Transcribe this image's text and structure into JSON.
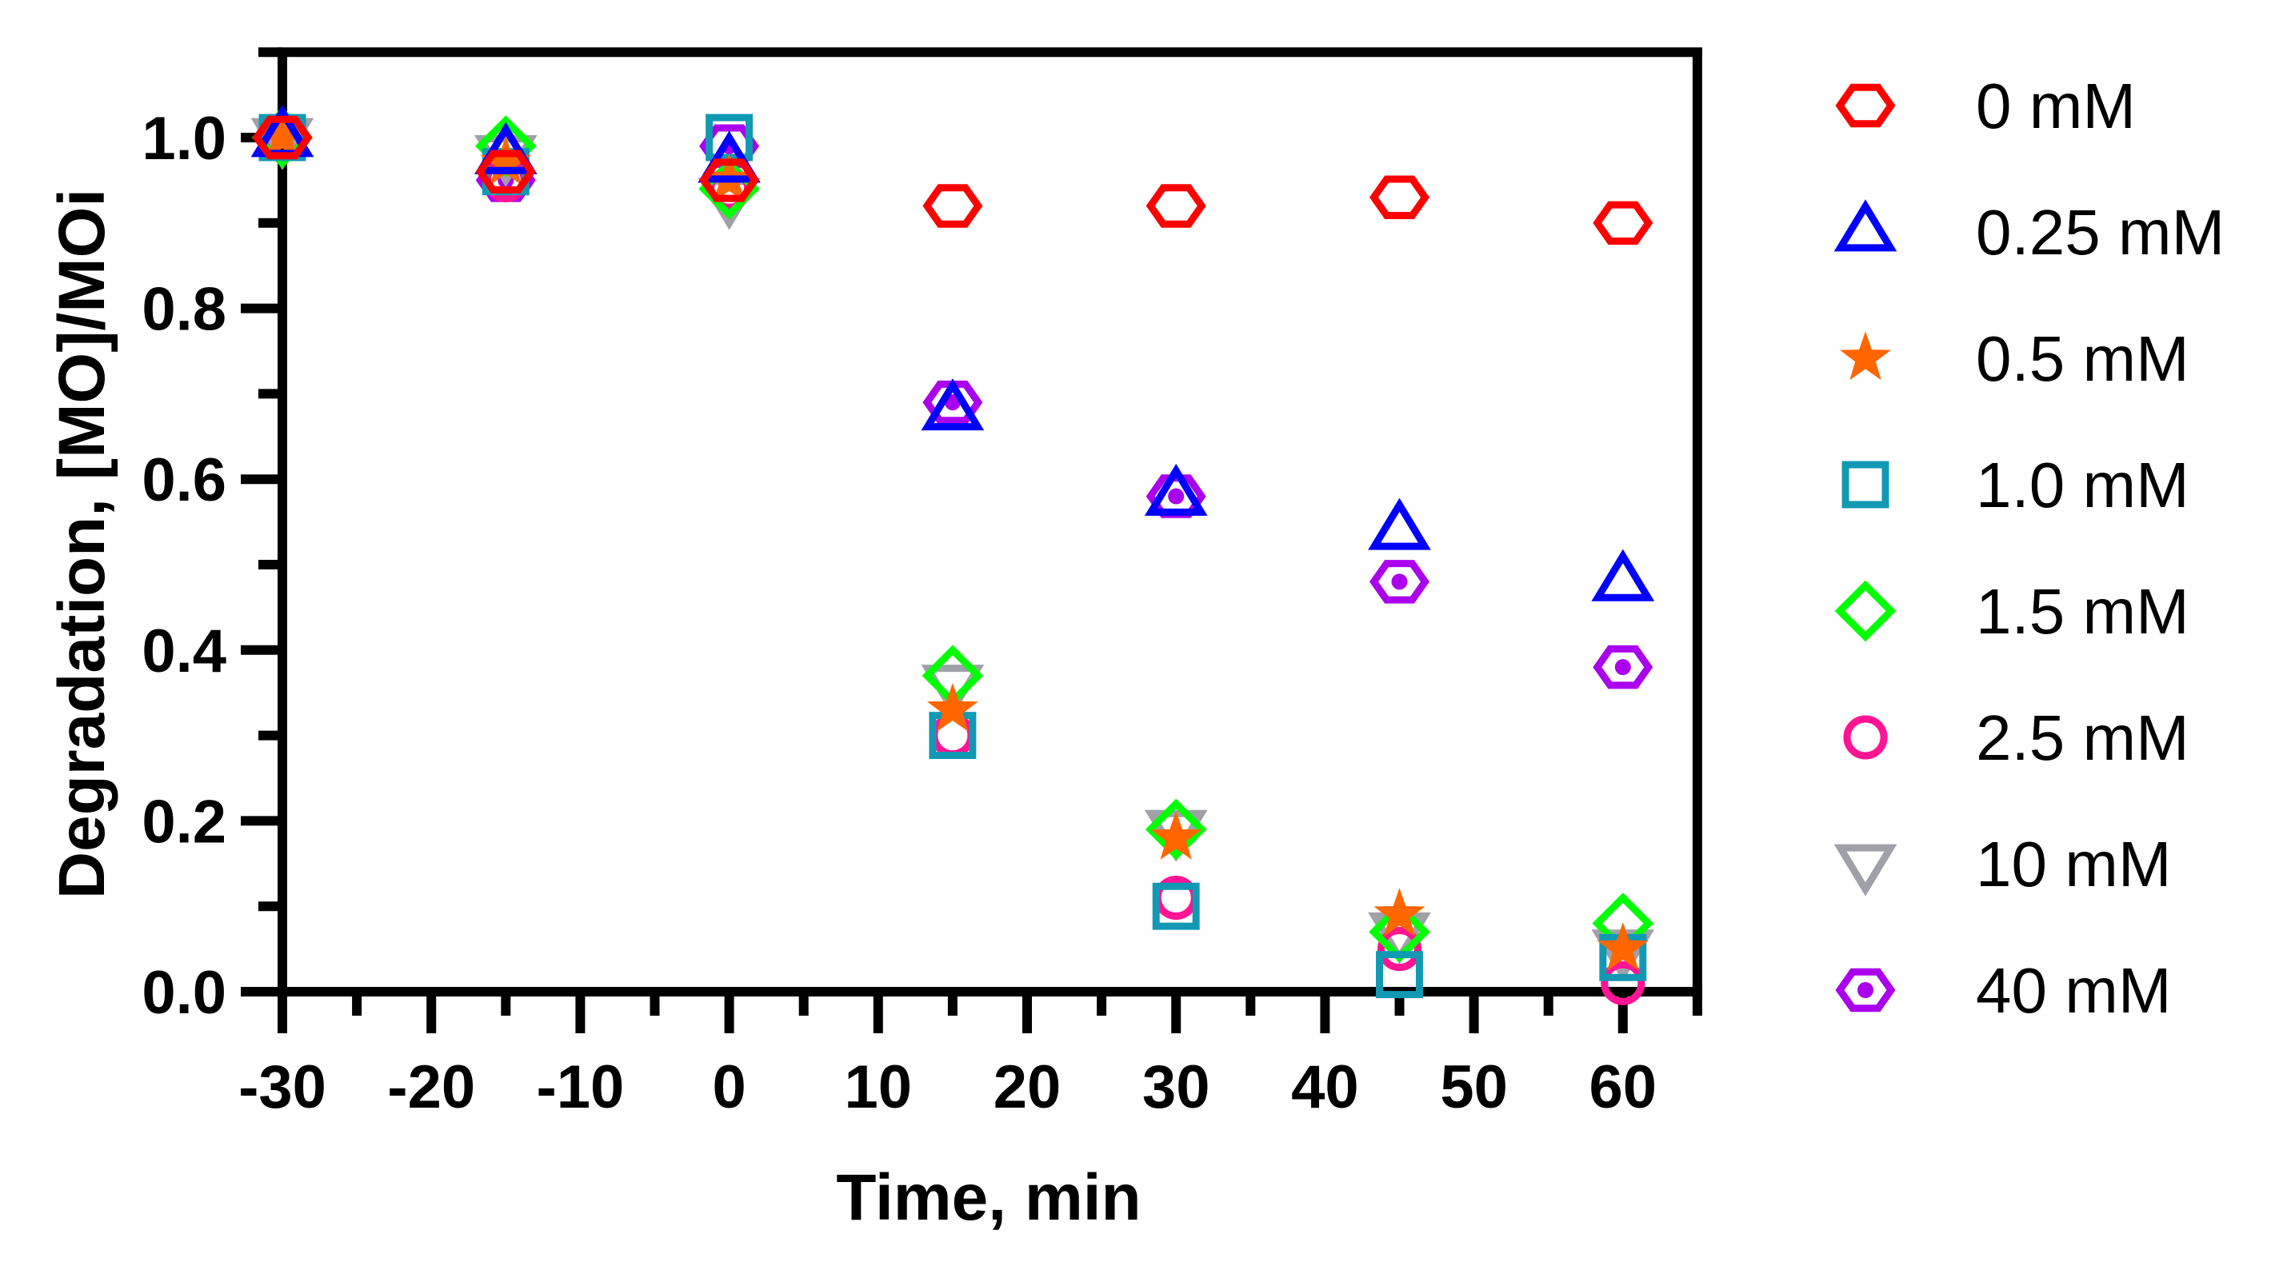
{
  "chart_data": {
    "type": "scatter",
    "title": "",
    "xlabel": "Time, min",
    "ylabel": "Degradation, [MO]/MOi",
    "xlim": [
      -30,
      65
    ],
    "ylim": [
      0,
      1.1
    ],
    "x_ticks": [
      -30,
      -20,
      -10,
      0,
      10,
      20,
      30,
      40,
      50,
      60
    ],
    "x_tick_labels": [
      "-30",
      "-20",
      "-10",
      "0",
      "10",
      "20",
      "30",
      "40",
      "50",
      "60"
    ],
    "y_ticks": [
      0.0,
      0.2,
      0.4,
      0.6,
      0.8,
      1.0
    ],
    "y_tick_labels": [
      "0.0",
      "0.2",
      "0.4",
      "0.6",
      "0.8",
      "1.0"
    ],
    "grid": false,
    "legend_position": "right",
    "x": [
      -30,
      -15,
      0,
      15,
      30,
      45,
      60
    ],
    "series": [
      {
        "name": "0 mM",
        "marker": "hexagon",
        "color": "#ff0000",
        "values": [
          1.0,
          0.96,
          0.95,
          0.92,
          0.92,
          0.93,
          0.9
        ]
      },
      {
        "name": "0.25 mM",
        "marker": "triangle-up",
        "color": "#0000ff",
        "values": [
          1.0,
          0.98,
          0.97,
          0.68,
          0.58,
          0.54,
          0.48
        ]
      },
      {
        "name": "0.5 mM",
        "marker": "star",
        "color": "#ff6600",
        "values": [
          1.0,
          0.97,
          0.95,
          0.33,
          0.18,
          0.09,
          0.05
        ]
      },
      {
        "name": "1.0 mM",
        "marker": "square",
        "color": "#1199b3",
        "values": [
          1.0,
          0.96,
          1.0,
          0.3,
          0.1,
          0.02,
          0.04
        ]
      },
      {
        "name": "1.5 mM",
        "marker": "diamond",
        "color": "#00ff00",
        "values": [
          1.0,
          0.99,
          0.94,
          0.37,
          0.19,
          0.07,
          0.08
        ]
      },
      {
        "name": "2.5 mM",
        "marker": "circle",
        "color": "#ff1493",
        "values": [
          1.0,
          0.95,
          0.94,
          0.3,
          0.11,
          0.05,
          0.01
        ]
      },
      {
        "name": "10 mM",
        "marker": "triangle-down",
        "color": "#a0a0a8",
        "values": [
          1.0,
          0.98,
          0.93,
          0.36,
          0.19,
          0.07,
          0.05
        ]
      },
      {
        "name": "40 mM",
        "marker": "hexagon-dot",
        "color": "#aa00ee",
        "values": [
          1.0,
          0.95,
          0.99,
          0.69,
          0.58,
          0.48,
          0.38
        ]
      }
    ]
  },
  "legend": {
    "items": [
      {
        "label": "0 mM",
        "icon": "hexagon-icon"
      },
      {
        "label": "0.25 mM",
        "icon": "triangle-up-icon"
      },
      {
        "label": "0.5 mM",
        "icon": "star-icon"
      },
      {
        "label": "1.0 mM",
        "icon": "square-icon"
      },
      {
        "label": "1.5 mM",
        "icon": "diamond-icon"
      },
      {
        "label": "2.5 mM",
        "icon": "circle-icon"
      },
      {
        "label": "10 mM",
        "icon": "triangle-down-icon"
      },
      {
        "label": "40 mM",
        "icon": "hexagon-dot-icon"
      }
    ]
  }
}
